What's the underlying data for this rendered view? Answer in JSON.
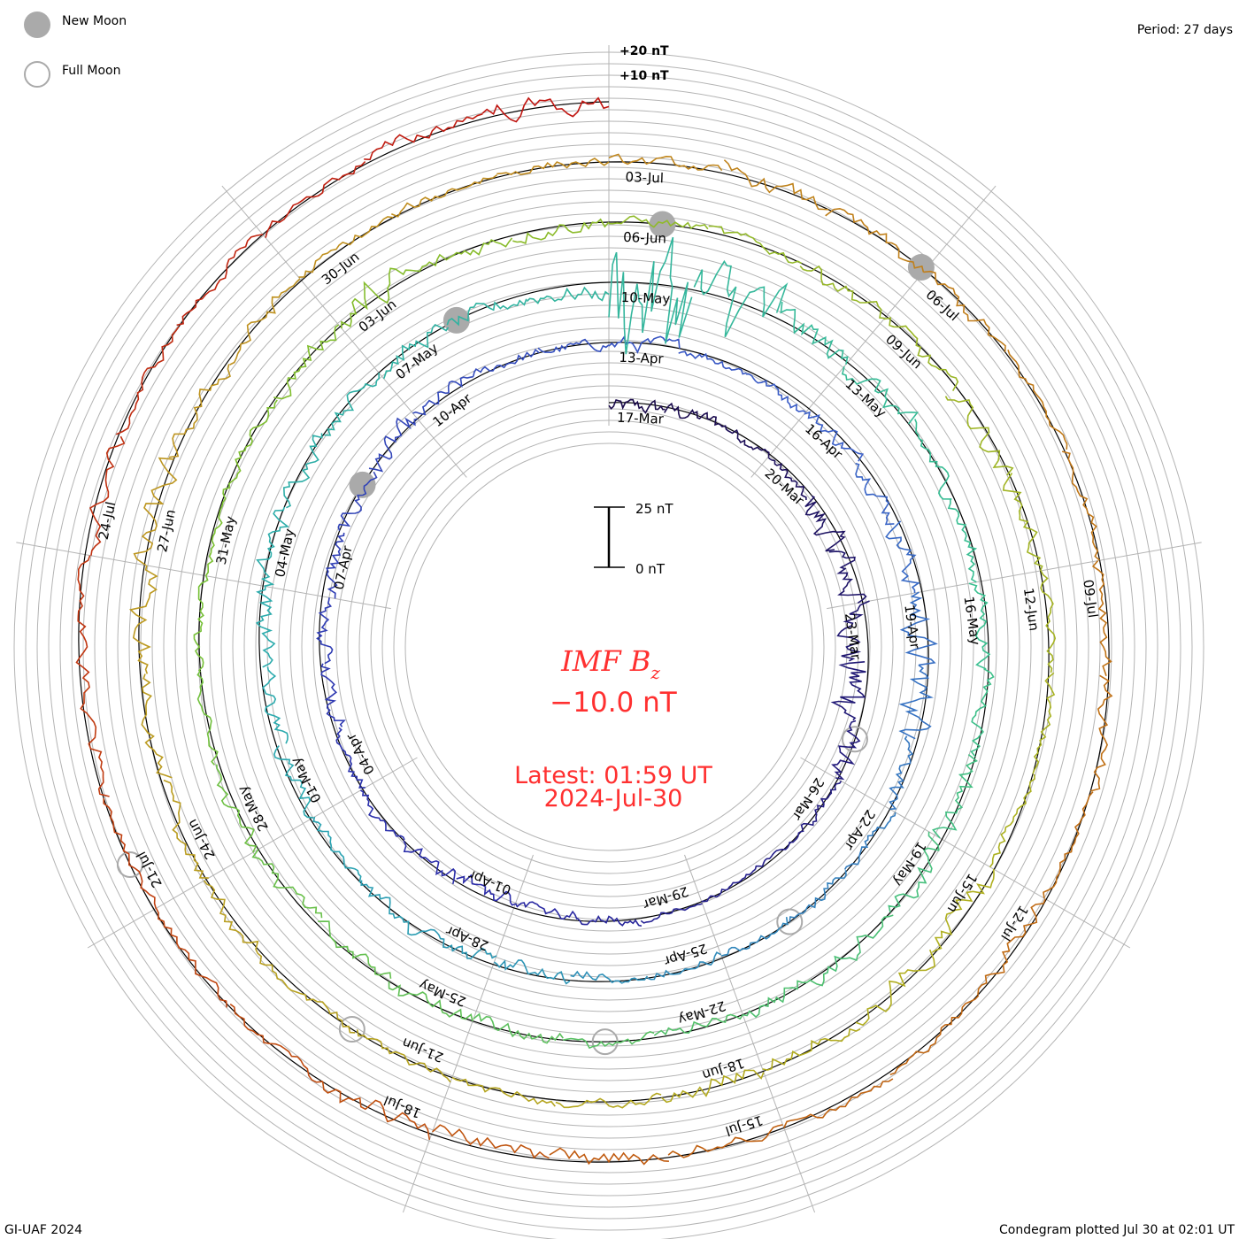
{
  "legend": {
    "new_moon": "New Moon",
    "full_moon": "Full Moon"
  },
  "period_label": "Period: 27 days",
  "scale_top": {
    "plus20": "+20 nT",
    "plus10": "+10 nT"
  },
  "scale_bar": {
    "top": "25 nT",
    "bottom": "0 nT"
  },
  "center": {
    "title_main": "IMF B",
    "title_sub": "z",
    "current_value": "−10.0 nT",
    "latest": "Latest: 01:59 UT",
    "latest_date": "2024-Jul-30"
  },
  "footer": {
    "left": "GI-UAF 2024",
    "right": "Condegram plotted Jul 30 at 02:01 UT"
  },
  "chart_data": {
    "type": "line",
    "subtype": "condegram-spiral",
    "title": "IMF Bz",
    "units": "nT",
    "period_days": 27,
    "start_date": "2024-03-17",
    "end_date": "2024-07-30",
    "scale_nT": [
      0,
      25
    ],
    "colors": [
      "#1a0a4a",
      "#2a2aa8",
      "#3a5fc8",
      "#2aa8b0",
      "#3ac090",
      "#7ac030",
      "#b0b020",
      "#c09020",
      "#c06010",
      "#c01010"
    ],
    "daily_bz": [
      -2,
      -1,
      0,
      -1,
      -3,
      -4,
      -2,
      -8,
      -3,
      -1,
      0,
      -1,
      0,
      1,
      -1,
      -2,
      -1,
      0,
      1,
      -2,
      -1,
      -3,
      -2,
      -1,
      0,
      1,
      0,
      -1,
      0,
      -1,
      -2,
      -1,
      -2,
      -3,
      -4,
      -1,
      0,
      -1,
      0,
      -1,
      0,
      -2,
      -1,
      0,
      -1,
      -2,
      -1,
      -3,
      -1,
      0,
      1,
      0,
      -1,
      -2,
      -5,
      -3,
      2,
      -1,
      0,
      -1,
      -2,
      -1,
      0,
      -1,
      0,
      1,
      0,
      -1,
      0,
      -1,
      0,
      -1,
      0,
      1,
      0,
      -1,
      0,
      -1,
      1,
      0,
      -1,
      0,
      1,
      0,
      -1,
      -2,
      -1,
      0,
      1,
      0,
      -2,
      -1,
      0,
      -1,
      0,
      1,
      0,
      -1,
      0,
      1,
      -1,
      -2,
      -1,
      0,
      -1,
      1,
      0,
      1,
      0,
      1,
      0,
      -1,
      0,
      1,
      0,
      -1,
      0,
      -1,
      0,
      1,
      0,
      -1,
      -2,
      -1,
      0,
      -1,
      -1,
      0,
      -1,
      -2,
      -1,
      0,
      0,
      1,
      2,
      -2
    ],
    "daily_variability": [
      3,
      3,
      2,
      2,
      5,
      6,
      5,
      8,
      4,
      2,
      1,
      1,
      1,
      2,
      2,
      3,
      3,
      2,
      2,
      3,
      3,
      3,
      3,
      4,
      3,
      2,
      2,
      3,
      2,
      2,
      3,
      3,
      4,
      6,
      6,
      3,
      2,
      2,
      2,
      2,
      2,
      3,
      3,
      3,
      2,
      3,
      3,
      4,
      4,
      3,
      3,
      3,
      3,
      3,
      25,
      15,
      5,
      4,
      3,
      3,
      3,
      3,
      4,
      4,
      3,
      3,
      2,
      2,
      3,
      3,
      3,
      3,
      3,
      2,
      2,
      2,
      2,
      3,
      6,
      3,
      3,
      2,
      2,
      3,
      3,
      4,
      3,
      2,
      2,
      2,
      4,
      4,
      3,
      3,
      2,
      2,
      2,
      2,
      3,
      3,
      3,
      5,
      5,
      3,
      3,
      2,
      2,
      2,
      2,
      3,
      3,
      3,
      2,
      2,
      3,
      3,
      2,
      3,
      2,
      2,
      2,
      3,
      3,
      4,
      2,
      2,
      2,
      3,
      3,
      3,
      2,
      2,
      2,
      3,
      4,
      5
    ],
    "date_labels": [
      "17-Mar",
      "20-Mar",
      "23-Mar",
      "26-Mar",
      "29-Mar",
      "01-Apr",
      "04-Apr",
      "07-Apr",
      "10-Apr",
      "13-Apr",
      "16-Apr",
      "19-Apr",
      "22-Apr",
      "25-Apr",
      "28-Apr",
      "01-May",
      "04-May",
      "07-May",
      "10-May",
      "13-May",
      "16-May",
      "19-May",
      "22-May",
      "25-May",
      "28-May",
      "31-May",
      "03-Jun",
      "06-Jun",
      "09-Jun",
      "12-Jun",
      "15-Jun",
      "18-Jun",
      "21-Jun",
      "24-Jun",
      "27-Jun",
      "30-Jun",
      "03-Jul",
      "06-Jul",
      "09-Jul",
      "12-Jul",
      "15-Jul",
      "18-Jul",
      "21-Jul",
      "24-Jul"
    ],
    "new_moons": [
      "2024-04-08T18:00Z",
      "2024-05-08T03:00Z",
      "2024-06-06T13:00Z",
      "2024-07-05T23:00Z"
    ],
    "full_moons": [
      "2024-03-25T07:00Z",
      "2024-04-24T00:00Z",
      "2024-05-23T13:00Z",
      "2024-06-22T01:00Z",
      "2024-07-21T10:00Z"
    ],
    "moon_colors": {
      "new": "#aaaaaa",
      "full": "#aaaaaa"
    }
  }
}
